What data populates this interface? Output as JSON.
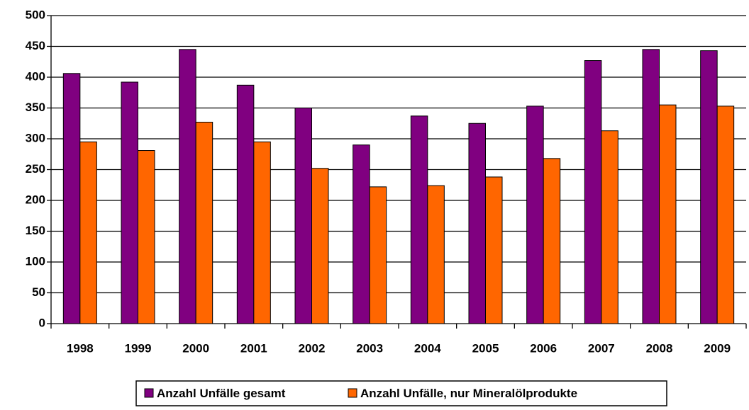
{
  "chart_data": {
    "type": "bar",
    "categories": [
      "1998",
      "1999",
      "2000",
      "2001",
      "2002",
      "2003",
      "2004",
      "2005",
      "2006",
      "2007",
      "2008",
      "2009"
    ],
    "series": [
      {
        "name": "Anzahl Unfälle gesamt",
        "color": "#800080",
        "values": [
          406,
          392,
          445,
          387,
          350,
          290,
          337,
          325,
          353,
          427,
          445,
          443
        ]
      },
      {
        "name": "Anzahl Unfälle, nur Mineralölprodukte",
        "color": "#ff6600",
        "values": [
          295,
          281,
          327,
          295,
          252,
          222,
          224,
          238,
          268,
          313,
          355,
          353
        ]
      }
    ],
    "ylim": [
      0,
      500
    ],
    "yticks": [
      0,
      50,
      100,
      150,
      200,
      250,
      300,
      350,
      400,
      450,
      500
    ],
    "grid": true,
    "legend": "bottom"
  }
}
